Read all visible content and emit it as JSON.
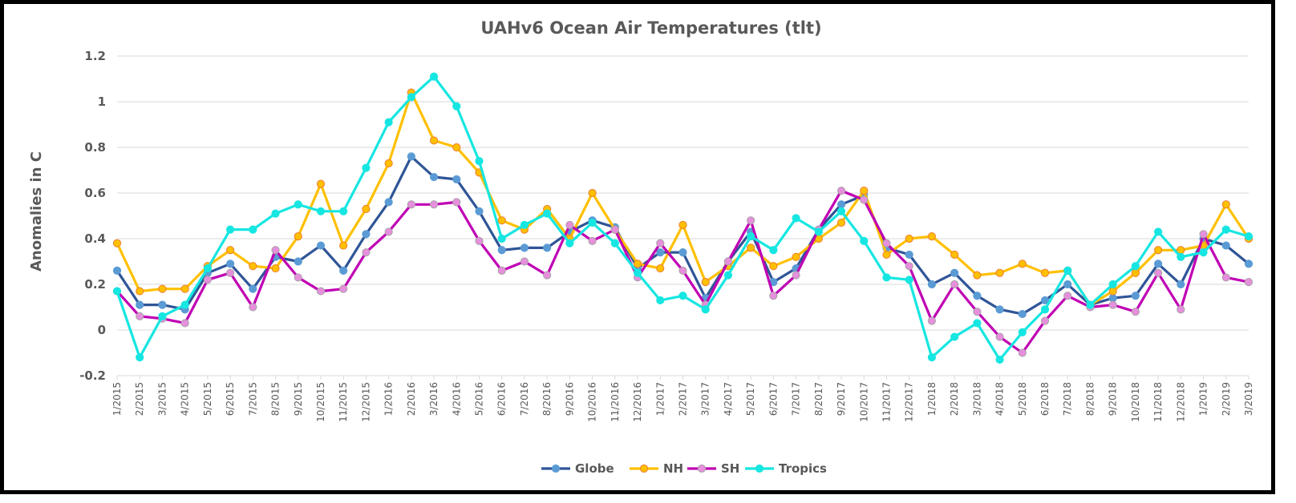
{
  "chart_data": {
    "type": "line",
    "title": "UAHv6 Ocean Air Temperatures (tlt)",
    "xlabel": "",
    "ylabel": "Anomalies in C",
    "ylim": [
      -0.2,
      1.2
    ],
    "yticks": [
      -0.2,
      0,
      0.2,
      0.4,
      0.6,
      0.8,
      1,
      1.2
    ],
    "ytick_labels": [
      "-0.2",
      "0",
      "0.2",
      "0.4",
      "0.6",
      "0.8",
      "1",
      "1.2"
    ],
    "grid": true,
    "legend_position": "bottom",
    "categories": [
      "1/2015",
      "2/2015",
      "3/2015",
      "4/2015",
      "5/2015",
      "6/2015",
      "7/2015",
      "8/2015",
      "9/2015",
      "10/2015",
      "11/2015",
      "12/2015",
      "1/2016",
      "2/2016",
      "3/2016",
      "4/2016",
      "5/2016",
      "6/2016",
      "7/2016",
      "8/2016",
      "9/2016",
      "10/2016",
      "11/2016",
      "12/2016",
      "1/2017",
      "2/2017",
      "3/2017",
      "4/2017",
      "5/2017",
      "6/2017",
      "7/2017",
      "8/2017",
      "9/2017",
      "10/2017",
      "11/2017",
      "12/2017",
      "1/2018",
      "2/2018",
      "3/2018",
      "4/2018",
      "5/2018",
      "6/2018",
      "7/2018",
      "8/2018",
      "9/2018",
      "10/2018",
      "11/2018",
      "12/2018",
      "1/2019",
      "2/2019",
      "3/2019"
    ],
    "series": [
      {
        "name": "Globe",
        "line_color": "#2f5597",
        "marker_color": "#5b9bd5",
        "marker_border": "#5b9bd5",
        "values": [
          0.26,
          0.11,
          0.11,
          0.09,
          0.25,
          0.29,
          0.18,
          0.32,
          0.3,
          0.37,
          0.26,
          0.42,
          0.56,
          0.76,
          0.67,
          0.66,
          0.52,
          0.35,
          0.36,
          0.36,
          0.43,
          0.48,
          0.45,
          0.27,
          0.34,
          0.34,
          0.14,
          0.3,
          0.43,
          0.21,
          0.27,
          0.44,
          0.55,
          0.59,
          0.36,
          0.33,
          0.2,
          0.25,
          0.15,
          0.09,
          0.07,
          0.13,
          0.2,
          0.11,
          0.14,
          0.15,
          0.29,
          0.2,
          0.4,
          0.37,
          0.29
        ]
      },
      {
        "name": "NH",
        "line_color": "#ffc000",
        "marker_color": "#ffc000",
        "marker_border": "#ed7d31",
        "values": [
          0.38,
          0.17,
          0.18,
          0.18,
          0.28,
          0.35,
          0.28,
          0.27,
          0.41,
          0.64,
          0.37,
          0.53,
          0.73,
          1.04,
          0.83,
          0.8,
          0.69,
          0.48,
          0.44,
          0.53,
          0.4,
          0.6,
          0.44,
          0.29,
          0.27,
          0.46,
          0.21,
          0.28,
          0.36,
          0.28,
          0.32,
          0.4,
          0.47,
          0.61,
          0.33,
          0.4,
          0.41,
          0.33,
          0.24,
          0.25,
          0.29,
          0.25,
          0.26,
          0.11,
          0.17,
          0.25,
          0.35,
          0.35,
          0.37,
          0.55,
          0.4
        ]
      },
      {
        "name": "SH",
        "line_color": "#c000b4",
        "marker_color": "#e68fdc",
        "marker_border": "#a6a6a6",
        "values": [
          0.17,
          0.06,
          0.05,
          0.03,
          0.22,
          0.25,
          0.1,
          0.35,
          0.23,
          0.17,
          0.18,
          0.34,
          0.43,
          0.55,
          0.55,
          0.56,
          0.39,
          0.26,
          0.3,
          0.24,
          0.46,
          0.39,
          0.44,
          0.23,
          0.38,
          0.26,
          0.11,
          0.3,
          0.48,
          0.15,
          0.24,
          0.44,
          0.61,
          0.57,
          0.38,
          0.28,
          0.04,
          0.2,
          0.08,
          -0.03,
          -0.1,
          0.04,
          0.15,
          0.1,
          0.11,
          0.08,
          0.25,
          0.09,
          0.42,
          0.23,
          0.21
        ]
      },
      {
        "name": "Tropics",
        "line_color": "#16e6e1",
        "marker_color": "#16e6e1",
        "marker_border": "#16e6e1",
        "values": [
          0.17,
          -0.12,
          0.06,
          0.11,
          0.27,
          0.44,
          0.44,
          0.51,
          0.55,
          0.52,
          0.52,
          0.71,
          0.91,
          1.02,
          1.11,
          0.98,
          0.74,
          0.4,
          0.46,
          0.51,
          0.38,
          0.47,
          0.38,
          0.25,
          0.13,
          0.15,
          0.09,
          0.24,
          0.41,
          0.35,
          0.49,
          0.43,
          0.52,
          0.39,
          0.23,
          0.22,
          -0.12,
          -0.03,
          0.03,
          -0.13,
          -0.01,
          0.09,
          0.26,
          0.11,
          0.2,
          0.28,
          0.43,
          0.32,
          0.34,
          0.44,
          0.41
        ]
      }
    ]
  }
}
